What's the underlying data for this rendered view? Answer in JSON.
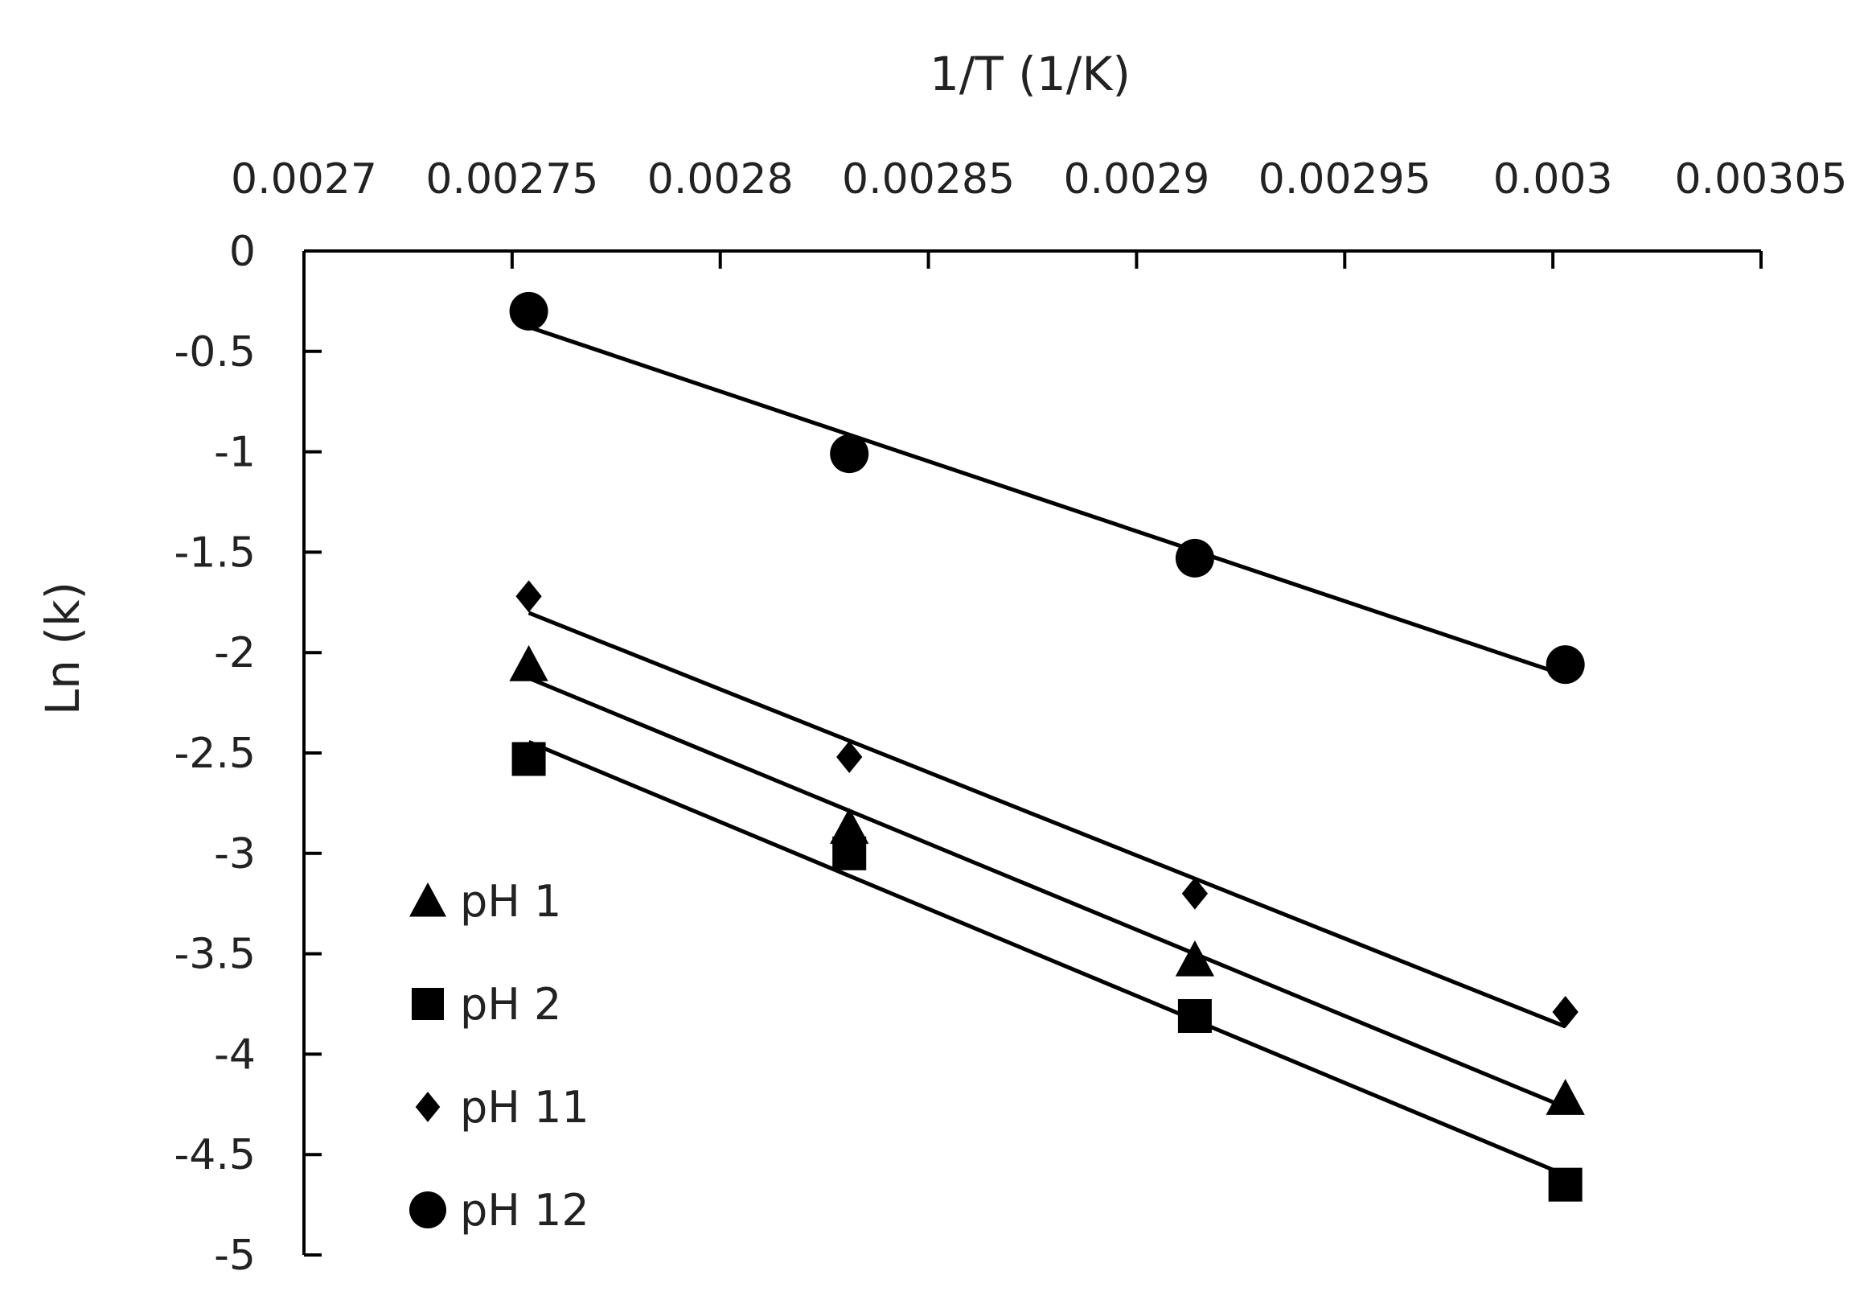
{
  "chart_data": {
    "type": "scatter",
    "xlabel": "1/T (1/K)",
    "ylabel": "Ln (k)",
    "x_axis_position": "top",
    "xlim": [
      0.0027,
      0.00305
    ],
    "ylim": [
      -5,
      0
    ],
    "x_ticks": [
      "0.0027",
      "0.00275",
      "0.0028",
      "0.00285",
      "0.0029",
      "0.00295",
      "0.003",
      "0.00305"
    ],
    "y_ticks": [
      "0",
      "-0.5",
      "-1",
      "-1.5",
      "-2",
      "-2.5",
      "-3",
      "-3.5",
      "-4",
      "-4.5",
      "-5"
    ],
    "grid": false,
    "legend_position": "bottom-left",
    "trendlines": "linear",
    "colors": {
      "marks": "#000000",
      "axis": "#000000"
    },
    "series": [
      {
        "name": "pH 1",
        "marker": "triangle",
        "x": [
          0.002754,
          0.002831,
          0.002914,
          0.003003
        ],
        "y": [
          -2.06,
          -2.87,
          -3.53,
          -4.22
        ]
      },
      {
        "name": "pH 2",
        "marker": "square",
        "x": [
          0.002754,
          0.002831,
          0.002914,
          0.003003
        ],
        "y": [
          -2.53,
          -3.0,
          -3.81,
          -4.65
        ]
      },
      {
        "name": "pH 11",
        "marker": "diamond",
        "x": [
          0.002754,
          0.002831,
          0.002914,
          0.003003
        ],
        "y": [
          -1.72,
          -2.52,
          -3.2,
          -3.79
        ]
      },
      {
        "name": "pH 12",
        "marker": "circle",
        "x": [
          0.002754,
          0.002831,
          0.002914,
          0.003003
        ],
        "y": [
          -0.3,
          -1.01,
          -1.53,
          -2.06
        ]
      }
    ]
  }
}
